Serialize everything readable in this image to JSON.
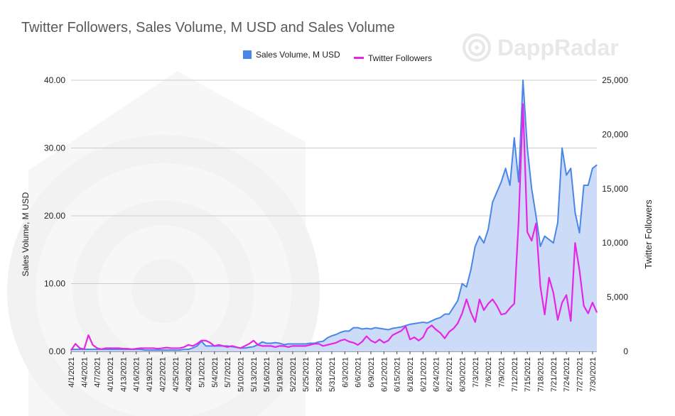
{
  "chart_data": {
    "type": "area+line",
    "title": "Twitter Followers, Sales Volume, M USD and Sales Volume",
    "ylabel_left": "Sales Volume, M USD",
    "ylabel_right": "Twitter Followers",
    "ylim_left": [
      0,
      40
    ],
    "ylim_right": [
      0,
      25000
    ],
    "yticks_left": [
      "0.00",
      "10.00",
      "20.00",
      "30.00",
      "40.00"
    ],
    "yticks_right": [
      "0",
      "5,000",
      "10,000",
      "15,000",
      "20,000",
      "25,000"
    ],
    "legend_position": "top-center",
    "grid": true,
    "categories": [
      "4/1/2021",
      "4/2/2021",
      "4/3/2021",
      "4/4/2021",
      "4/5/2021",
      "4/6/2021",
      "4/7/2021",
      "4/8/2021",
      "4/9/2021",
      "4/10/2021",
      "4/11/2021",
      "4/12/2021",
      "4/13/2021",
      "4/14/2021",
      "4/15/2021",
      "4/16/2021",
      "4/17/2021",
      "4/18/2021",
      "4/19/2021",
      "4/20/2021",
      "4/21/2021",
      "4/22/2021",
      "4/23/2021",
      "4/24/2021",
      "4/25/2021",
      "4/26/2021",
      "4/27/2021",
      "4/28/2021",
      "4/29/2021",
      "4/30/2021",
      "5/1/2021",
      "5/2/2021",
      "5/3/2021",
      "5/4/2021",
      "5/5/2021",
      "5/6/2021",
      "5/7/2021",
      "5/8/2021",
      "5/9/2021",
      "5/10/2021",
      "5/11/2021",
      "5/12/2021",
      "5/13/2021",
      "5/14/2021",
      "5/15/2021",
      "5/16/2021",
      "5/17/2021",
      "5/18/2021",
      "5/19/2021",
      "5/20/2021",
      "5/21/2021",
      "5/22/2021",
      "5/23/2021",
      "5/24/2021",
      "5/25/2021",
      "5/26/2021",
      "5/27/2021",
      "5/28/2021",
      "5/29/2021",
      "5/30/2021",
      "5/31/2021",
      "6/1/2021",
      "6/2/2021",
      "6/3/2021",
      "6/4/2021",
      "6/5/2021",
      "6/6/2021",
      "6/7/2021",
      "6/8/2021",
      "6/9/2021",
      "6/10/2021",
      "6/11/2021",
      "6/12/2021",
      "6/13/2021",
      "6/14/2021",
      "6/15/2021",
      "6/16/2021",
      "6/17/2021",
      "6/18/2021",
      "6/19/2021",
      "6/20/2021",
      "6/21/2021",
      "6/22/2021",
      "6/23/2021",
      "6/24/2021",
      "6/25/2021",
      "6/26/2021",
      "6/27/2021",
      "6/28/2021",
      "6/29/2021",
      "6/30/2021",
      "7/1/2021",
      "7/2/2021",
      "7/3/2021",
      "7/4/2021",
      "7/5/2021",
      "7/6/2021",
      "7/7/2021",
      "7/8/2021",
      "7/9/2021",
      "7/10/2021",
      "7/11/2021",
      "7/12/2021",
      "7/13/2021",
      "7/14/2021",
      "7/15/2021",
      "7/16/2021",
      "7/17/2021",
      "7/18/2021",
      "7/19/2021",
      "7/20/2021",
      "7/21/2021",
      "7/22/2021",
      "7/23/2021",
      "7/24/2021",
      "7/25/2021",
      "7/26/2021",
      "7/27/2021",
      "7/28/2021",
      "7/29/2021",
      "7/30/2021",
      "7/31/2021"
    ],
    "series": [
      {
        "name": "Sales Volume, M USD",
        "type": "area",
        "axis": "left",
        "color": "#4a86e8",
        "fill": "#c9daf8",
        "values": [
          0.3,
          0.3,
          0.3,
          0.3,
          0.3,
          0.3,
          0.3,
          0.3,
          0.3,
          0.3,
          0.3,
          0.3,
          0.3,
          0.3,
          0.3,
          0.3,
          0.3,
          0.2,
          0.2,
          0.2,
          0.2,
          0.2,
          0.2,
          0.2,
          0.2,
          0.2,
          0.3,
          0.3,
          0.5,
          0.8,
          1.5,
          0.8,
          0.8,
          0.8,
          0.8,
          0.8,
          0.8,
          0.7,
          0.6,
          0.5,
          0.5,
          0.6,
          0.7,
          1.0,
          1.4,
          1.2,
          1.2,
          1.3,
          1.2,
          1.0,
          1.1,
          1.1,
          1.1,
          1.1,
          1.1,
          1.2,
          1.2,
          1.4,
          1.5,
          2.0,
          2.3,
          2.5,
          2.8,
          3.0,
          3.0,
          3.5,
          3.5,
          3.3,
          3.4,
          3.3,
          3.5,
          3.4,
          3.3,
          3.2,
          3.4,
          3.5,
          3.6,
          3.8,
          4.0,
          4.1,
          4.2,
          4.3,
          4.2,
          4.5,
          4.8,
          5.0,
          5.5,
          5.5,
          6.5,
          7.5,
          10.0,
          9.5,
          12.0,
          15.5,
          17.0,
          16.0,
          18.0,
          22.0,
          23.5,
          25.0,
          27.0,
          24.5,
          31.5,
          25.0,
          40.0,
          30.0,
          24.0,
          20.0,
          15.5,
          17.0,
          16.5,
          16.0,
          19.0,
          30.0,
          26.0,
          27.0,
          20.5,
          17.5,
          24.5,
          24.5,
          27.0,
          27.5
        ]
      },
      {
        "name": "Twitter Followers",
        "type": "line",
        "axis": "right",
        "color": "#e526e5",
        "values": [
          100,
          700,
          300,
          200,
          1500,
          600,
          300,
          200,
          300,
          300,
          300,
          300,
          250,
          250,
          200,
          250,
          300,
          300,
          300,
          300,
          250,
          300,
          350,
          300,
          300,
          300,
          400,
          600,
          500,
          700,
          1000,
          1000,
          800,
          500,
          600,
          500,
          400,
          500,
          400,
          300,
          500,
          700,
          1000,
          600,
          500,
          500,
          500,
          400,
          500,
          500,
          400,
          500,
          500,
          500,
          500,
          600,
          700,
          700,
          500,
          600,
          700,
          800,
          1000,
          1100,
          900,
          800,
          600,
          900,
          1400,
          1000,
          800,
          1100,
          800,
          1000,
          1500,
          1700,
          1900,
          2300,
          1100,
          1300,
          1000,
          1300,
          2100,
          2400,
          2000,
          1700,
          1200,
          1800,
          2100,
          2600,
          3500,
          4800,
          3600,
          2700,
          4800,
          3800,
          4400,
          4800,
          4200,
          3400,
          3500,
          4000,
          4400,
          12000,
          22800,
          11000,
          10200,
          11800,
          6000,
          3400,
          6800,
          5400,
          2900,
          4500,
          5200,
          2800,
          10000,
          7500,
          4200,
          3500,
          4500,
          3600
        ]
      }
    ]
  }
}
